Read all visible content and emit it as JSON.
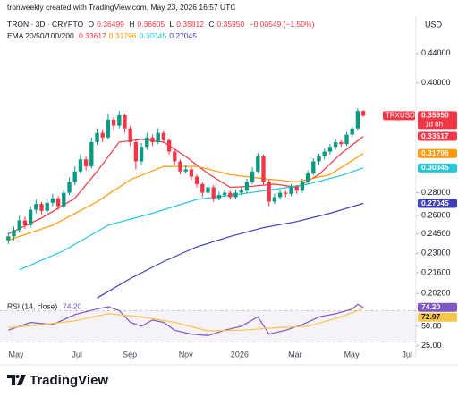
{
  "chart_data": {
    "type": "candlestick",
    "source_note": "tronweekly created with TradingView.com, May 23, 2026 16:57 UTC",
    "title": "TRON · 3D · CRYPTO",
    "ohlc_letters": [
      "O",
      "H",
      "L",
      "C"
    ],
    "change": "−0.00549 (−1.50%)",
    "currency": "USD",
    "symbol": "TRXUSD",
    "countdown": "1d 8h",
    "brand": "TradingView",
    "up_color": "#089981",
    "down_color": "#f23645",
    "log": true,
    "grid": false,
    "xlim": [
      -1.5,
      73.5
    ],
    "xticks": [
      {
        "value": 1.4,
        "label": "May"
      },
      {
        "value": 12.4,
        "label": "Jul"
      },
      {
        "value": 21.9,
        "label": "Sep"
      },
      {
        "value": 32,
        "label": "Nov"
      },
      {
        "value": 41.7,
        "label": "2026"
      },
      {
        "value": 51.7,
        "label": "Mar"
      },
      {
        "value": 61.9,
        "label": "May"
      },
      {
        "value": 71.9,
        "label": "Jul"
      }
    ],
    "ylim": [
      0.198,
      0.466
    ],
    "yticks": [
      {
        "value": 0.44,
        "label": "0.44000"
      },
      {
        "value": 0.4,
        "label": "0.40000"
      },
      {
        "value": 0.28,
        "label": "0.28000"
      },
      {
        "value": 0.26,
        "label": "0.26000"
      },
      {
        "value": 0.245,
        "label": "0.24500"
      },
      {
        "value": 0.23,
        "label": "0.23000"
      },
      {
        "value": 0.216,
        "label": "0.21600"
      },
      {
        "value": 0.202,
        "label": "0.20200"
      }
    ],
    "candles": [
      [
        0.24,
        0.246,
        0.237,
        0.243
      ],
      [
        0.243,
        0.251,
        0.24,
        0.248
      ],
      [
        0.248,
        0.26,
        0.246,
        0.256
      ],
      [
        0.256,
        0.259,
        0.249,
        0.252
      ],
      [
        0.252,
        0.268,
        0.25,
        0.265
      ],
      [
        0.265,
        0.274,
        0.262,
        0.27
      ],
      [
        0.27,
        0.272,
        0.261,
        0.264
      ],
      [
        0.264,
        0.275,
        0.262,
        0.271
      ],
      [
        0.271,
        0.279,
        0.268,
        0.275
      ],
      [
        0.275,
        0.277,
        0.265,
        0.268
      ],
      [
        0.268,
        0.283,
        0.266,
        0.28
      ],
      [
        0.28,
        0.294,
        0.278,
        0.29
      ],
      [
        0.29,
        0.305,
        0.287,
        0.3
      ],
      [
        0.3,
        0.317,
        0.298,
        0.312
      ],
      [
        0.312,
        0.315,
        0.301,
        0.305
      ],
      [
        0.305,
        0.335,
        0.303,
        0.33
      ],
      [
        0.33,
        0.345,
        0.327,
        0.34
      ],
      [
        0.34,
        0.344,
        0.33,
        0.335
      ],
      [
        0.335,
        0.362,
        0.333,
        0.355
      ],
      [
        0.355,
        0.358,
        0.343,
        0.348
      ],
      [
        0.348,
        0.365,
        0.345,
        0.36
      ],
      [
        0.36,
        0.362,
        0.34,
        0.345
      ],
      [
        0.345,
        0.348,
        0.326,
        0.33
      ],
      [
        0.33,
        0.332,
        0.302,
        0.31
      ],
      [
        0.31,
        0.329,
        0.307,
        0.325
      ],
      [
        0.325,
        0.34,
        0.322,
        0.335
      ],
      [
        0.335,
        0.338,
        0.326,
        0.33
      ],
      [
        0.33,
        0.345,
        0.328,
        0.34
      ],
      [
        0.34,
        0.343,
        0.329,
        0.332
      ],
      [
        0.332,
        0.334,
        0.317,
        0.32
      ],
      [
        0.32,
        0.323,
        0.307,
        0.31
      ],
      [
        0.31,
        0.312,
        0.297,
        0.3
      ],
      [
        0.3,
        0.306,
        0.298,
        0.302
      ],
      [
        0.302,
        0.304,
        0.292,
        0.295
      ],
      [
        0.295,
        0.297,
        0.285,
        0.288
      ],
      [
        0.288,
        0.29,
        0.276,
        0.28
      ],
      [
        0.28,
        0.288,
        0.278,
        0.285
      ],
      [
        0.285,
        0.287,
        0.272,
        0.275
      ],
      [
        0.275,
        0.281,
        0.273,
        0.278
      ],
      [
        0.278,
        0.283,
        0.276,
        0.28
      ],
      [
        0.28,
        0.282,
        0.274,
        0.276
      ],
      [
        0.276,
        0.283,
        0.274,
        0.28
      ],
      [
        0.28,
        0.285,
        0.278,
        0.282
      ],
      [
        0.282,
        0.293,
        0.28,
        0.29
      ],
      [
        0.29,
        0.304,
        0.288,
        0.3
      ],
      [
        0.3,
        0.319,
        0.298,
        0.315
      ],
      [
        0.315,
        0.317,
        0.287,
        0.29
      ],
      [
        0.29,
        0.292,
        0.268,
        0.272
      ],
      [
        0.272,
        0.279,
        0.27,
        0.276
      ],
      [
        0.276,
        0.283,
        0.274,
        0.28
      ],
      [
        0.28,
        0.282,
        0.276,
        0.279
      ],
      [
        0.279,
        0.288,
        0.277,
        0.285
      ],
      [
        0.285,
        0.287,
        0.279,
        0.282
      ],
      [
        0.282,
        0.293,
        0.28,
        0.29
      ],
      [
        0.29,
        0.301,
        0.288,
        0.298
      ],
      [
        0.298,
        0.313,
        0.296,
        0.31
      ],
      [
        0.31,
        0.318,
        0.307,
        0.315
      ],
      [
        0.315,
        0.323,
        0.312,
        0.32
      ],
      [
        0.32,
        0.328,
        0.317,
        0.325
      ],
      [
        0.325,
        0.333,
        0.322,
        0.33
      ],
      [
        0.33,
        0.332,
        0.325,
        0.328
      ],
      [
        0.328,
        0.341,
        0.326,
        0.338
      ],
      [
        0.338,
        0.348,
        0.336,
        0.345
      ],
      [
        0.345,
        0.368,
        0.343,
        0.365
      ],
      [
        0.36499,
        0.36605,
        0.35812,
        0.3595
      ]
    ],
    "value_labels": [
      null,
      null,
      null,
      null,
      null,
      null,
      null,
      null,
      null,
      null,
      null,
      null,
      null,
      null,
      null,
      null,
      null,
      null,
      null,
      null,
      null,
      null,
      null,
      null,
      null,
      null,
      null,
      null,
      null,
      null,
      null,
      null,
      null,
      null,
      null,
      null,
      null,
      null,
      null,
      null,
      null,
      null,
      null,
      null,
      null,
      null,
      null,
      null,
      null,
      null,
      null,
      null,
      null,
      null,
      null,
      null,
      null,
      null,
      null,
      null,
      null,
      null,
      null,
      null,
      [
        "0.36499",
        "0.36605",
        "0.35812",
        "0.35950"
      ]
    ],
    "ema": {
      "label": "EMA 20/50/100/200",
      "series": [
        {
          "color": "#f23645",
          "x": [
            0,
            6,
            12,
            16,
            20,
            24,
            28,
            32,
            36,
            40,
            44,
            48,
            52,
            56,
            60,
            64
          ],
          "values": [
            0.245,
            0.258,
            0.275,
            0.3,
            0.33,
            0.333,
            0.33,
            0.315,
            0.298,
            0.285,
            0.286,
            0.288,
            0.285,
            0.297,
            0.318,
            0.33617
          ]
        },
        {
          "color": "#ff9800",
          "x": [
            0,
            8,
            16,
            22,
            28,
            34,
            40,
            46,
            52,
            58,
            64
          ],
          "values": [
            0.24,
            0.252,
            0.272,
            0.292,
            0.305,
            0.305,
            0.297,
            0.293,
            0.29,
            0.297,
            0.31796
          ]
        },
        {
          "color": "#26c6da",
          "x": [
            2,
            10,
            18,
            26,
            34,
            42,
            48,
            54,
            60,
            64
          ],
          "values": [
            0.218,
            0.232,
            0.252,
            0.262,
            0.274,
            0.279,
            0.283,
            0.288,
            0.296,
            0.30345
          ]
        },
        {
          "color": "#3f3fb5",
          "x": [
            16,
            22,
            28,
            34,
            40,
            46,
            52,
            58,
            64
          ],
          "values": [
            0.199,
            0.212,
            0.224,
            0.235,
            0.243,
            0.25,
            0.255,
            0.262,
            0.27045
          ]
        }
      ]
    },
    "rsi": {
      "label": "RSI (14, close)",
      "ylim": [
        19,
        83
      ],
      "band": [
        30,
        70
      ],
      "yticks": [
        {
          "value": 50,
          "label": "50.00"
        },
        {
          "value": 25,
          "label": "25.00"
        }
      ],
      "series": [
        {
          "color": "#7e57c2",
          "x": [
            0,
            4,
            8,
            12,
            16,
            18,
            20,
            22,
            24,
            26,
            28,
            30,
            33,
            36,
            39,
            42,
            45,
            47,
            50,
            53,
            56,
            59,
            62,
            63,
            64
          ],
          "values": [
            45,
            55,
            52,
            65,
            72,
            75,
            70,
            55,
            50,
            58,
            55,
            45,
            40,
            38,
            45,
            50,
            62,
            40,
            45,
            52,
            62,
            66,
            72,
            78,
            74.2
          ],
          "value_labels": [
            null,
            null,
            null,
            null,
            null,
            null,
            null,
            null,
            null,
            null,
            null,
            null,
            null,
            null,
            null,
            null,
            null,
            null,
            null,
            null,
            null,
            null,
            null,
            null,
            "74.20"
          ]
        },
        {
          "color": "#f7c548",
          "x": [
            0,
            6,
            12,
            18,
            24,
            30,
            36,
            42,
            48,
            54,
            60,
            64
          ],
          "values": [
            48,
            52,
            57,
            66,
            62,
            55,
            44,
            45,
            48,
            50,
            62,
            72.97
          ]
        }
      ]
    }
  }
}
